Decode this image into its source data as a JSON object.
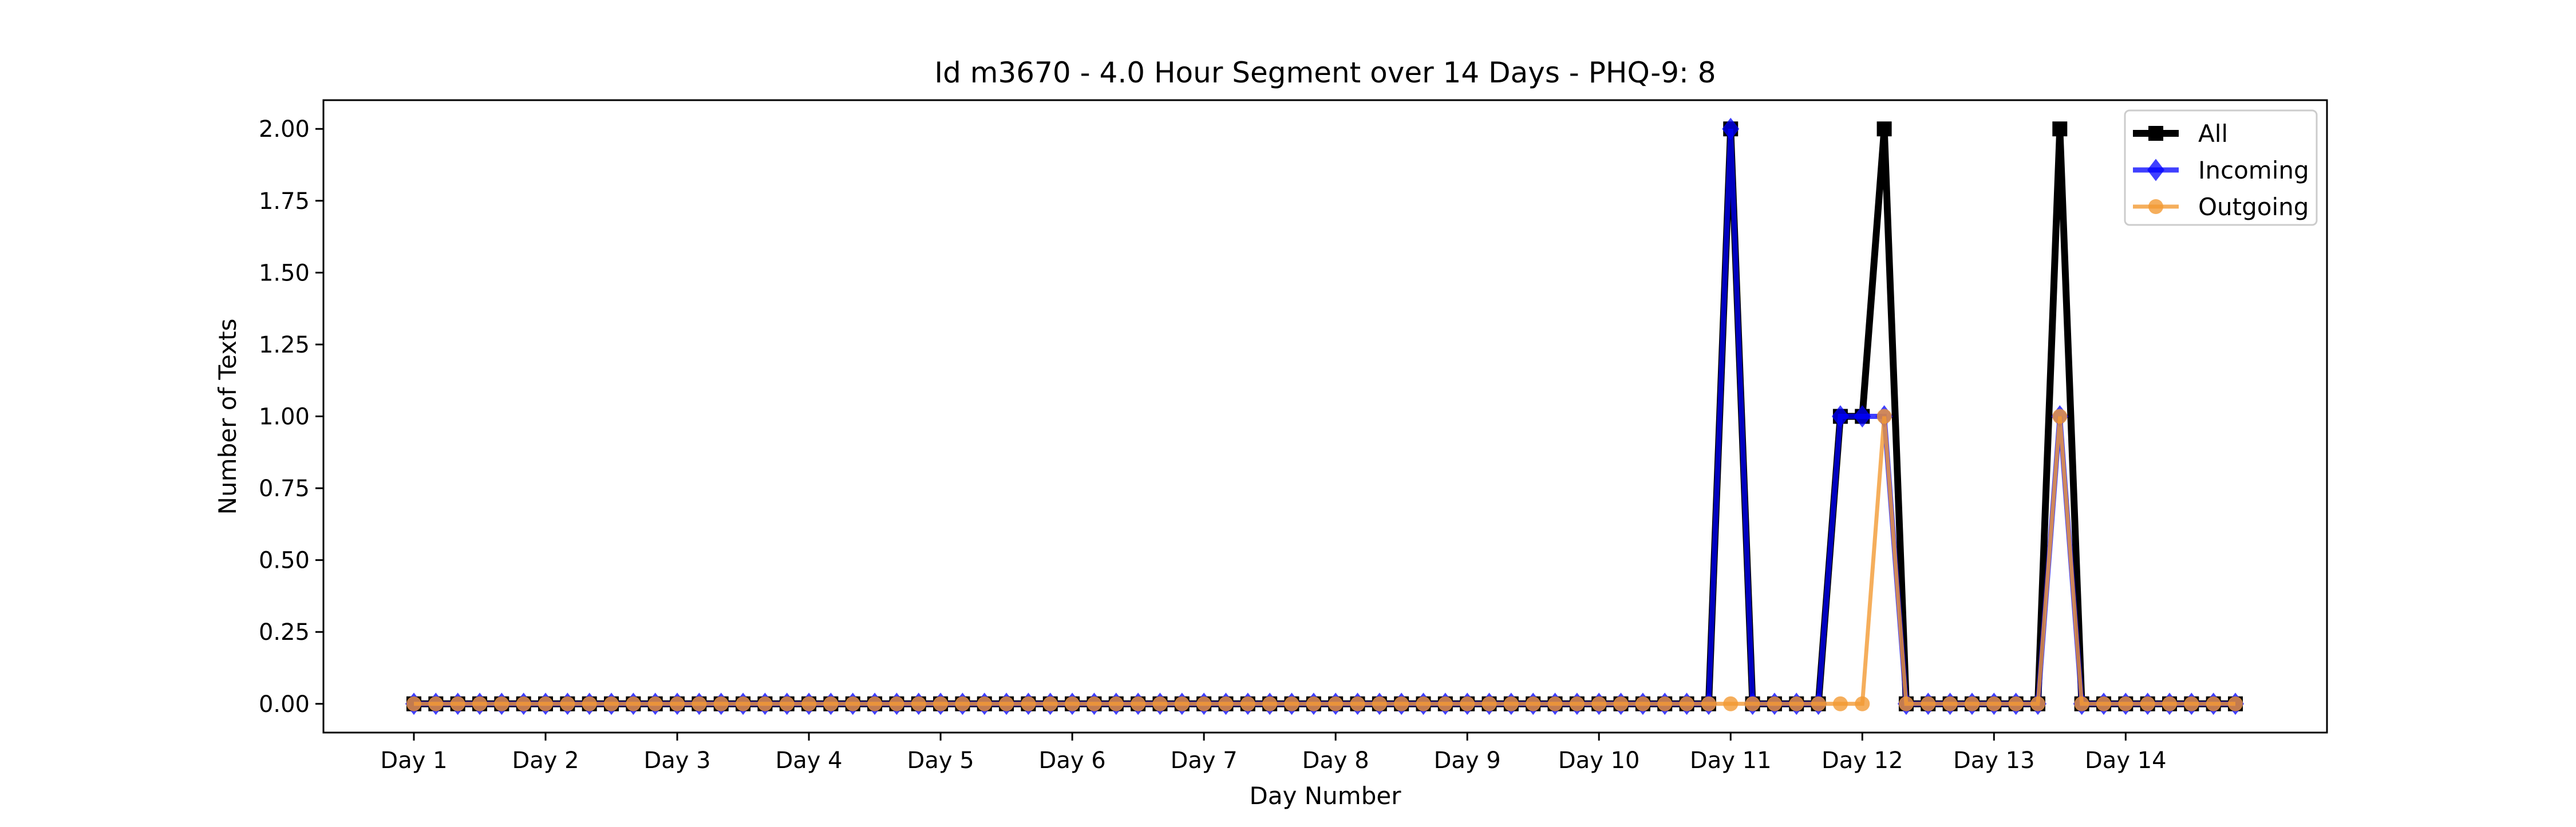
{
  "chart_data": {
    "type": "line",
    "title": "Id m3670 - 4.0 Hour Segment over 14 Days - PHQ-9: 8",
    "xlabel": "Day Number",
    "ylabel": "Number of Texts",
    "ylim": [
      -0.1,
      2.1
    ],
    "yticks": [
      "0.00",
      "0.25",
      "0.50",
      "0.75",
      "1.00",
      "1.25",
      "1.50",
      "1.75",
      "2.00"
    ],
    "xticks": [
      {
        "label": "Day 1",
        "segment": 0
      },
      {
        "label": "Day 2",
        "segment": 6
      },
      {
        "label": "Day 3",
        "segment": 12
      },
      {
        "label": "Day 4",
        "segment": 18
      },
      {
        "label": "Day 5",
        "segment": 24
      },
      {
        "label": "Day 6",
        "segment": 30
      },
      {
        "label": "Day 7",
        "segment": 36
      },
      {
        "label": "Day 8",
        "segment": 42
      },
      {
        "label": "Day 9",
        "segment": 48
      },
      {
        "label": "Day 10",
        "segment": 54
      },
      {
        "label": "Day 11",
        "segment": 60
      },
      {
        "label": "Day 12",
        "segment": 66
      },
      {
        "label": "Day 13",
        "segment": 72
      },
      {
        "label": "Day 14",
        "segment": 78
      }
    ],
    "legend_position": "top-right",
    "grid": false,
    "series": [
      {
        "name": "All",
        "color": "#000000",
        "marker": "square",
        "values": [
          0,
          0,
          0,
          0,
          0,
          0,
          0,
          0,
          0,
          0,
          0,
          0,
          0,
          0,
          0,
          0,
          0,
          0,
          0,
          0,
          0,
          0,
          0,
          0,
          0,
          0,
          0,
          0,
          0,
          0,
          0,
          0,
          0,
          0,
          0,
          0,
          0,
          0,
          0,
          0,
          0,
          0,
          0,
          0,
          0,
          0,
          0,
          0,
          0,
          0,
          0,
          0,
          0,
          0,
          0,
          0,
          0,
          0,
          0,
          0,
          2,
          0,
          0,
          0,
          0,
          1,
          1,
          2,
          0,
          0,
          0,
          0,
          0,
          0,
          0,
          2,
          0,
          0,
          0,
          0,
          0,
          0,
          0,
          0
        ]
      },
      {
        "name": "Incoming",
        "color": "#0000ff",
        "marker": "diamond",
        "values": [
          0,
          0,
          0,
          0,
          0,
          0,
          0,
          0,
          0,
          0,
          0,
          0,
          0,
          0,
          0,
          0,
          0,
          0,
          0,
          0,
          0,
          0,
          0,
          0,
          0,
          0,
          0,
          0,
          0,
          0,
          0,
          0,
          0,
          0,
          0,
          0,
          0,
          0,
          0,
          0,
          0,
          0,
          0,
          0,
          0,
          0,
          0,
          0,
          0,
          0,
          0,
          0,
          0,
          0,
          0,
          0,
          0,
          0,
          0,
          0,
          2,
          0,
          0,
          0,
          0,
          1,
          1,
          1,
          0,
          0,
          0,
          0,
          0,
          0,
          0,
          1,
          0,
          0,
          0,
          0,
          0,
          0,
          0,
          0
        ]
      },
      {
        "name": "Outgoing",
        "color": "#f39a33",
        "marker": "circle",
        "values": [
          0,
          0,
          0,
          0,
          0,
          0,
          0,
          0,
          0,
          0,
          0,
          0,
          0,
          0,
          0,
          0,
          0,
          0,
          0,
          0,
          0,
          0,
          0,
          0,
          0,
          0,
          0,
          0,
          0,
          0,
          0,
          0,
          0,
          0,
          0,
          0,
          0,
          0,
          0,
          0,
          0,
          0,
          0,
          0,
          0,
          0,
          0,
          0,
          0,
          0,
          0,
          0,
          0,
          0,
          0,
          0,
          0,
          0,
          0,
          0,
          0,
          0,
          0,
          0,
          0,
          0,
          0,
          1,
          0,
          0,
          0,
          0,
          0,
          0,
          0,
          1,
          0,
          0,
          0,
          0,
          0,
          0,
          0,
          0
        ]
      }
    ]
  }
}
